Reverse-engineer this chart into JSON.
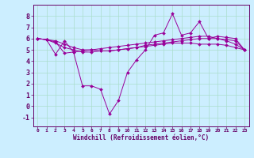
{
  "background_color": "#cceeff",
  "grid_color": "#aaddcc",
  "line_color": "#990099",
  "tick_color": "#660066",
  "xlabel": "Windchill (Refroidissement éolien,°C)",
  "xlim": [
    -0.5,
    23.5
  ],
  "ylim": [
    -1.8,
    9.0
  ],
  "xticks": [
    0,
    1,
    2,
    3,
    4,
    5,
    6,
    7,
    8,
    9,
    10,
    11,
    12,
    13,
    14,
    15,
    16,
    17,
    18,
    19,
    20,
    21,
    22,
    23
  ],
  "yticks": [
    -1,
    0,
    1,
    2,
    3,
    4,
    5,
    6,
    7,
    8
  ],
  "series1": {
    "x": [
      0,
      1,
      2,
      3,
      4,
      5,
      6,
      7,
      8,
      9,
      10,
      11,
      12,
      13,
      14,
      15,
      16,
      17,
      18,
      19,
      20,
      21,
      22,
      23
    ],
    "y": [
      6.0,
      5.9,
      4.6,
      5.8,
      4.8,
      1.8,
      1.8,
      1.5,
      -0.7,
      0.5,
      3.0,
      4.1,
      5.0,
      6.3,
      6.5,
      8.2,
      6.3,
      6.5,
      7.5,
      6.0,
      6.2,
      6.1,
      6.0,
      5.0
    ]
  },
  "series2": {
    "x": [
      0,
      1,
      2,
      3,
      4,
      5,
      6,
      7,
      8,
      9,
      10,
      11,
      12,
      13,
      14,
      15,
      16,
      17,
      18,
      19,
      20,
      21,
      22,
      23
    ],
    "y": [
      6.0,
      5.9,
      5.8,
      5.5,
      5.2,
      5.0,
      5.0,
      4.9,
      4.9,
      5.0,
      5.1,
      5.2,
      5.3,
      5.4,
      5.5,
      5.6,
      5.6,
      5.6,
      5.5,
      5.5,
      5.5,
      5.4,
      5.2,
      5.0
    ]
  },
  "series3": {
    "x": [
      0,
      1,
      2,
      3,
      4,
      5,
      6,
      7,
      8,
      9,
      10,
      11,
      12,
      13,
      14,
      15,
      16,
      17,
      18,
      19,
      20,
      21,
      22,
      23
    ],
    "y": [
      6.0,
      5.9,
      5.6,
      5.2,
      5.0,
      4.8,
      4.8,
      4.9,
      4.9,
      5.0,
      5.1,
      5.2,
      5.4,
      5.5,
      5.6,
      5.7,
      5.8,
      5.9,
      6.0,
      6.0,
      6.0,
      5.9,
      5.8,
      5.0
    ]
  },
  "series4": {
    "x": [
      0,
      1,
      2,
      3,
      4,
      5,
      6,
      7,
      8,
      9,
      10,
      11,
      12,
      13,
      14,
      15,
      16,
      17,
      18,
      19,
      20,
      21,
      22,
      23
    ],
    "y": [
      6.0,
      5.9,
      5.7,
      4.7,
      4.8,
      4.9,
      5.0,
      5.1,
      5.2,
      5.3,
      5.4,
      5.5,
      5.6,
      5.7,
      5.8,
      5.9,
      6.0,
      6.1,
      6.2,
      6.2,
      6.0,
      5.8,
      5.5,
      5.0
    ]
  },
  "xlabel_fontsize": 5.5,
  "xlabel_fontweight": "bold",
  "ytick_fontsize": 6.0,
  "xtick_fontsize": 4.5
}
